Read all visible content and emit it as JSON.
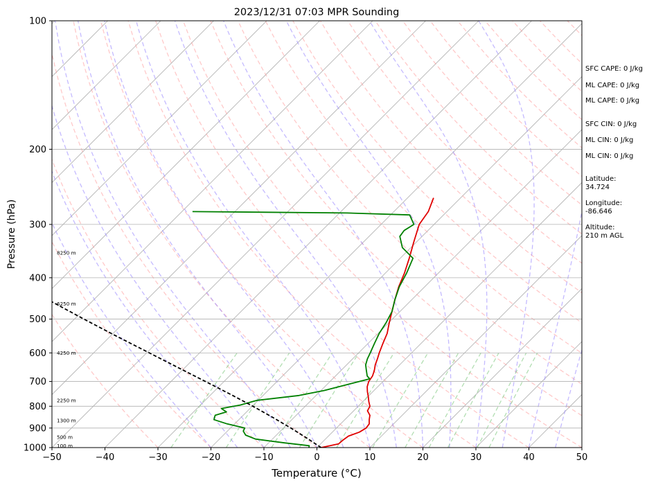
{
  "chart_data": {
    "type": "line",
    "title": "2023/12/31 07:03 MPR Sounding",
    "xlabel": "Temperature (°C)",
    "ylabel": "Pressure (hPa)",
    "xlim": [
      -50,
      50
    ],
    "ylim": [
      1000,
      100
    ],
    "yscale": "log",
    "grid": true,
    "x_ticks": [
      "−50",
      "−40",
      "−30",
      "−20",
      "−10",
      "0",
      "10",
      "20",
      "30",
      "40",
      "50"
    ],
    "x_tick_values": [
      -50,
      -40,
      -30,
      -20,
      -10,
      0,
      10,
      20,
      30,
      40,
      50
    ],
    "y_ticks": [
      "100",
      "200",
      "300",
      "400",
      "500",
      "600",
      "700",
      "800",
      "900",
      "1000"
    ],
    "y_tick_values": [
      100,
      200,
      300,
      400,
      500,
      600,
      700,
      800,
      900,
      1000
    ],
    "series": [
      {
        "color": "#e00000",
        "points": [
          [
            1000,
            0.8
          ],
          [
            980,
            3.4
          ],
          [
            960,
            3.5
          ],
          [
            940,
            3.8
          ],
          [
            920,
            5.1
          ],
          [
            900,
            5.6
          ],
          [
            880,
            5.4
          ],
          [
            860,
            4.6
          ],
          [
            840,
            3.9
          ],
          [
            820,
            2.6
          ],
          [
            800,
            2.2
          ],
          [
            780,
            1.1
          ],
          [
            760,
            0.1
          ],
          [
            740,
            -1.0
          ],
          [
            720,
            -2.0
          ],
          [
            700,
            -2.7
          ],
          [
            680,
            -3.0
          ],
          [
            660,
            -3.7
          ],
          [
            640,
            -4.6
          ],
          [
            620,
            -5.3
          ],
          [
            600,
            -6.1
          ],
          [
            570,
            -7.2
          ],
          [
            540,
            -8.3
          ],
          [
            510,
            -9.9
          ],
          [
            480,
            -11.5
          ],
          [
            450,
            -13.2
          ],
          [
            420,
            -14.9
          ],
          [
            390,
            -16.4
          ],
          [
            360,
            -18.3
          ],
          [
            330,
            -20.5
          ],
          [
            300,
            -22.8
          ],
          [
            280,
            -23.5
          ],
          [
            260,
            -25.1
          ]
        ]
      },
      {
        "color": "#008000",
        "points": [
          [
            1000,
            -1.5
          ],
          [
            990,
            -1.8
          ],
          [
            975,
            -7.0
          ],
          [
            955,
            -13.2
          ],
          [
            935,
            -15.8
          ],
          [
            915,
            -17.0
          ],
          [
            900,
            -17.3
          ],
          [
            880,
            -21.4
          ],
          [
            860,
            -24.7
          ],
          [
            840,
            -25.3
          ],
          [
            825,
            -23.8
          ],
          [
            810,
            -25.4
          ],
          [
            795,
            -22.5
          ],
          [
            775,
            -20.2
          ],
          [
            755,
            -13.2
          ],
          [
            735,
            -9.4
          ],
          [
            705,
            -5.2
          ],
          [
            690,
            -3.0
          ],
          [
            680,
            -4.0
          ],
          [
            660,
            -5.2
          ],
          [
            640,
            -6.4
          ],
          [
            620,
            -7.2
          ],
          [
            600,
            -7.8
          ],
          [
            570,
            -8.8
          ],
          [
            540,
            -9.8
          ],
          [
            510,
            -10.5
          ],
          [
            480,
            -11.5
          ],
          [
            450,
            -13.2
          ],
          [
            420,
            -14.8
          ],
          [
            390,
            -16.0
          ],
          [
            360,
            -17.6
          ],
          [
            340,
            -21.6
          ],
          [
            320,
            -24.2
          ],
          [
            310,
            -24.5
          ],
          [
            300,
            -23.8
          ],
          [
            285,
            -26.4
          ],
          [
            282,
            -38.6
          ],
          [
            280,
            -68.0
          ]
        ]
      },
      {
        "color": "#000000",
        "points": [
          [
            1000,
            0.8
          ],
          [
            950,
            -3.7
          ],
          [
            900,
            -8.6
          ],
          [
            850,
            -14.0
          ],
          [
            800,
            -19.9
          ],
          [
            750,
            -26.4
          ],
          [
            700,
            -33.5
          ],
          [
            650,
            -41.2
          ],
          [
            600,
            -49.5
          ],
          [
            550,
            -58.5
          ],
          [
            500,
            -68.2
          ],
          [
            450,
            -78.7
          ],
          [
            400,
            -90.0
          ],
          [
            350,
            -102.5
          ],
          [
            300,
            -116.4
          ],
          [
            280,
            -122.6
          ]
        ]
      }
    ],
    "height_labels": [
      {
        "label": "100 m",
        "p": 990
      },
      {
        "label": "500 m",
        "p": 945
      },
      {
        "label": "1300 m",
        "p": 865
      },
      {
        "label": "2250 m",
        "p": 775
      },
      {
        "label": "4250 m",
        "p": 600
      },
      {
        "label": "6250 m",
        "p": 460
      },
      {
        "label": "8250 m",
        "p": 350
      }
    ],
    "annotations": [
      "SFC CAPE: 0 J/kg",
      "ML CAPE: 0 J/kg",
      "ML CAPE: 0 J/kg",
      "SFC CIN: 0 J/kg",
      "ML CIN: 0 J/kg",
      "ML CIN: 0 J/kg",
      "Latitude:",
      "34.724",
      "Longitude:",
      "-86.646",
      "Altitude:",
      "210 m AGL"
    ],
    "colors": {
      "isotherm": "#b0b0b0",
      "dry_adiabat": "#ff9c9c",
      "moist_adiabat": "#9c8cff",
      "mixing_ratio": "#7fc87f",
      "frame": "#000000"
    }
  }
}
